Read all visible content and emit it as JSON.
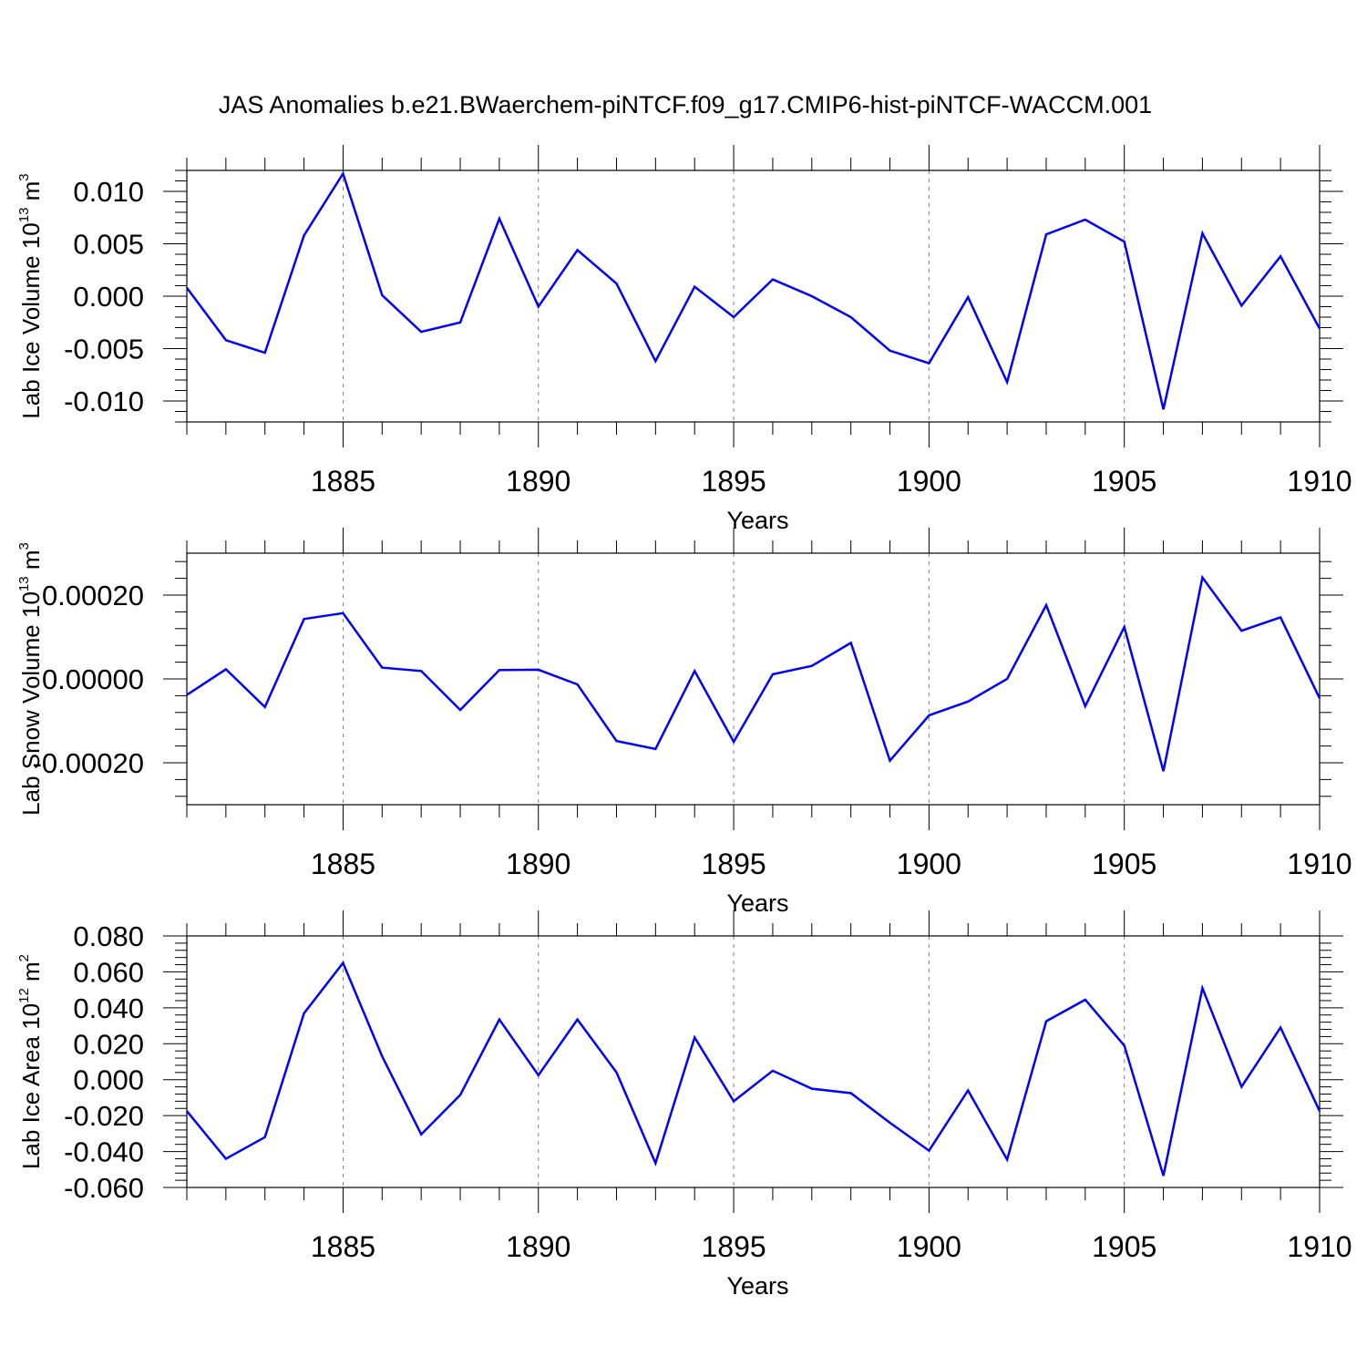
{
  "title": "JAS Anomalies b.e21.BWaerchem-piNTCF.f09_g17.CMIP6-hist-piNTCF-WACCM.001",
  "colors": {
    "series": "#0000ff",
    "axis": "#000000",
    "grid": "#808080",
    "background": "#ffffff"
  },
  "chart_data": [
    {
      "type": "line",
      "ylabel": "Lab Ice Volume 10",
      "ylabel_exp": "13",
      "ylabel_unit": " m",
      "ylabel_unit_exp": "3",
      "xlabel": "Years",
      "xlim": [
        1881,
        1910
      ],
      "ylim": [
        -0.012,
        0.012
      ],
      "yticks": [
        -0.01,
        -0.005,
        0.0,
        0.005,
        0.01
      ],
      "ytick_labels": [
        "-0.010",
        "-0.005",
        "0.000",
        "0.005",
        "0.010"
      ],
      "xticks": [
        1885,
        1890,
        1895,
        1900,
        1905,
        1910
      ],
      "xtick_labels": [
        "1885",
        "1890",
        "1895",
        "1900",
        "1905",
        "1910"
      ],
      "gridlines_x": [
        1885,
        1890,
        1895,
        1900,
        1905
      ],
      "series": [
        {
          "name": "Lab Ice Volume",
          "x": [
            1881,
            1882,
            1883,
            1884,
            1885,
            1886,
            1887,
            1888,
            1889,
            1890,
            1891,
            1892,
            1893,
            1894,
            1895,
            1896,
            1897,
            1898,
            1899,
            1900,
            1901,
            1902,
            1903,
            1904,
            1905,
            1906,
            1907,
            1908,
            1909,
            1910
          ],
          "values": [
            0.0008,
            -0.0042,
            -0.0054,
            0.0058,
            0.0117,
            0.0001,
            -0.0034,
            -0.0025,
            0.0074,
            -0.001,
            0.0044,
            0.0012,
            -0.0062,
            0.0009,
            -0.002,
            0.0016,
            0.0,
            -0.002,
            -0.0052,
            -0.0064,
            -0.0001,
            -0.0082,
            0.0059,
            0.0073,
            0.0052,
            -0.0108,
            0.006,
            -0.0009,
            0.0038,
            -0.0031
          ]
        }
      ]
    },
    {
      "type": "line",
      "ylabel": "Lab Snow Volume 10",
      "ylabel_exp": "13",
      "ylabel_unit": " m",
      "ylabel_unit_exp": "3",
      "xlabel": "Years",
      "xlim": [
        1881,
        1910
      ],
      "ylim": [
        -0.0003,
        0.0003
      ],
      "yticks": [
        -0.0002,
        0.0,
        0.0002
      ],
      "ytick_labels": [
        "-0.00020",
        "0.00000",
        "0.00020"
      ],
      "xticks": [
        1885,
        1890,
        1895,
        1900,
        1905,
        1910
      ],
      "xtick_labels": [
        "1885",
        "1890",
        "1895",
        "1900",
        "1905",
        "1910"
      ],
      "gridlines_x": [
        1885,
        1890,
        1895,
        1900,
        1905
      ],
      "series": [
        {
          "name": "Lab Snow Volume",
          "x": [
            1881,
            1882,
            1883,
            1884,
            1885,
            1886,
            1887,
            1888,
            1889,
            1890,
            1891,
            1892,
            1893,
            1894,
            1895,
            1896,
            1897,
            1898,
            1899,
            1900,
            1901,
            1902,
            1903,
            1904,
            1905,
            1906,
            1907,
            1908,
            1909,
            1910
          ],
          "values": [
            -3.8e-05,
            2.3e-05,
            -6.7e-05,
            0.000143,
            0.000157,
            2.7e-05,
            1.9e-05,
            -7.4e-05,
            2.1e-05,
            2.2e-05,
            -1.3e-05,
            -0.000148,
            -0.000167,
            1.9e-05,
            -0.00015,
            1.1e-05,
            3.1e-05,
            8.6e-05,
            -0.000195,
            -8.7e-05,
            -5.4e-05,
            0.0,
            0.000176,
            -6.5e-05,
            0.000124,
            -0.00022,
            0.000242,
            0.000115,
            0.000147,
            -4.6e-05
          ]
        }
      ]
    },
    {
      "type": "line",
      "ylabel": "Lab Ice Area 10",
      "ylabel_exp": "12",
      "ylabel_unit": " m",
      "ylabel_unit_exp": "2",
      "xlabel": "Years",
      "xlim": [
        1881,
        1910
      ],
      "ylim": [
        -0.06,
        0.08
      ],
      "yticks": [
        -0.06,
        -0.04,
        -0.02,
        0.0,
        0.02,
        0.04,
        0.06,
        0.08
      ],
      "ytick_labels": [
        "-0.060",
        "-0.040",
        "-0.020",
        "0.000",
        "0.020",
        "0.040",
        "0.060",
        "0.080"
      ],
      "xticks": [
        1885,
        1890,
        1895,
        1900,
        1905,
        1910
      ],
      "xtick_labels": [
        "1885",
        "1890",
        "1895",
        "1900",
        "1905",
        "1910"
      ],
      "gridlines_x": [
        1885,
        1890,
        1895,
        1900,
        1905
      ],
      "series": [
        {
          "name": "Lab Ice Area",
          "x": [
            1881,
            1882,
            1883,
            1884,
            1885,
            1886,
            1887,
            1888,
            1889,
            1890,
            1891,
            1892,
            1893,
            1894,
            1895,
            1896,
            1897,
            1898,
            1899,
            1900,
            1901,
            1902,
            1903,
            1904,
            1905,
            1906,
            1907,
            1908,
            1909,
            1910
          ],
          "values": [
            -0.0175,
            -0.044,
            -0.032,
            0.037,
            0.065,
            0.013,
            -0.0305,
            -0.0085,
            0.0335,
            0.0025,
            0.0335,
            0.004,
            -0.0465,
            0.0235,
            -0.012,
            0.005,
            -0.005,
            -0.0075,
            -0.024,
            -0.0395,
            -0.006,
            -0.0445,
            0.0325,
            0.0445,
            0.019,
            -0.0535,
            0.051,
            -0.004,
            0.029,
            -0.0175
          ]
        }
      ]
    }
  ]
}
